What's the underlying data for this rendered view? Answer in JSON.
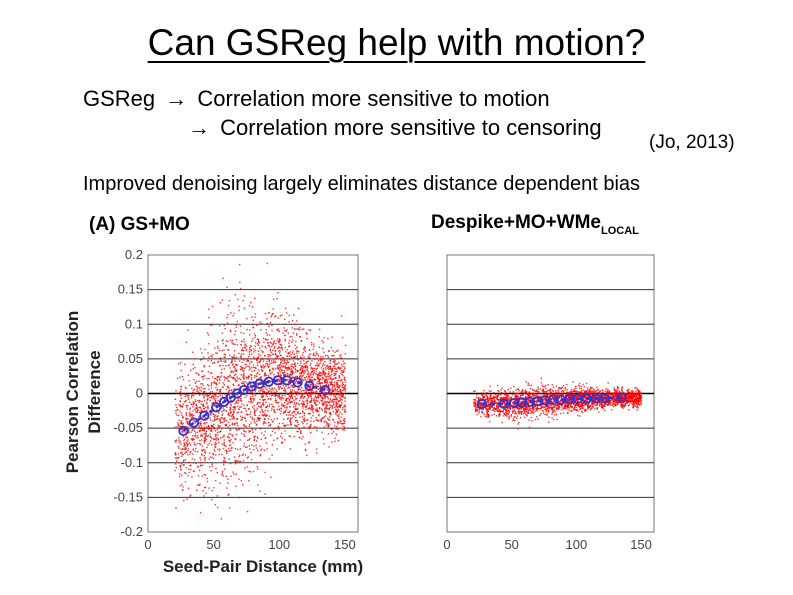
{
  "slide": {
    "title": "Can GSReg help with motion?",
    "line1_prefix": "GSReg",
    "line1_text": "Correlation more sensitive to motion",
    "line2_text": "Correlation more sensitive to censoring",
    "citation": "(Jo, 2013)",
    "improved": "Improved denoising largely eliminates distance dependent bias",
    "arrow_glyph": "→"
  },
  "chart_data": [
    {
      "type": "scatter",
      "title": "(A) GS+MO",
      "xlabel": "Seed-Pair Distance (mm)",
      "ylabel_line1": "Pearson Correlation",
      "ylabel_line2": "Difference",
      "xlim": [
        0,
        160
      ],
      "ylim": [
        -0.2,
        0.2
      ],
      "xticks": [
        "0",
        "50",
        "100",
        "150"
      ],
      "yticks": [
        "0.2",
        "0.15",
        "0.1",
        "0.05",
        "0",
        "-0.05",
        "-0.1",
        "-0.15",
        "-0.2"
      ],
      "grid": true,
      "scatter_color": "#ff0000",
      "trend_color": "#3333cc",
      "trend": [
        {
          "x": 27,
          "y": -0.054
        },
        {
          "x": 35,
          "y": -0.042
        },
        {
          "x": 43,
          "y": -0.032
        },
        {
          "x": 52,
          "y": -0.02
        },
        {
          "x": 58,
          "y": -0.012
        },
        {
          "x": 63,
          "y": -0.006
        },
        {
          "x": 68,
          "y": 0.0
        },
        {
          "x": 73,
          "y": 0.005
        },
        {
          "x": 79,
          "y": 0.01
        },
        {
          "x": 85,
          "y": 0.014
        },
        {
          "x": 92,
          "y": 0.017
        },
        {
          "x": 99,
          "y": 0.019
        },
        {
          "x": 106,
          "y": 0.019
        },
        {
          "x": 114,
          "y": 0.016
        },
        {
          "x": 123,
          "y": 0.011
        },
        {
          "x": 135,
          "y": 0.005
        }
      ]
    },
    {
      "type": "scatter",
      "title": "Despike+MO+WMe",
      "title_subscript": "LOCAL",
      "xlim": [
        0,
        160
      ],
      "ylim": [
        -0.2,
        0.2
      ],
      "xticks": [
        "0",
        "50",
        "100",
        "150"
      ],
      "grid": true,
      "scatter_color": "#ff0000",
      "trend_color": "#3333cc",
      "trend": [
        {
          "x": 27,
          "y": -0.015
        },
        {
          "x": 44,
          "y": -0.015
        },
        {
          "x": 52,
          "y": -0.014
        },
        {
          "x": 58,
          "y": -0.013
        },
        {
          "x": 64,
          "y": -0.012
        },
        {
          "x": 70,
          "y": -0.011
        },
        {
          "x": 76,
          "y": -0.01
        },
        {
          "x": 82,
          "y": -0.009
        },
        {
          "x": 88,
          "y": -0.009
        },
        {
          "x": 95,
          "y": -0.008
        },
        {
          "x": 101,
          "y": -0.008
        },
        {
          "x": 108,
          "y": -0.007
        },
        {
          "x": 115,
          "y": -0.007
        },
        {
          "x": 122,
          "y": -0.007
        },
        {
          "x": 135,
          "y": -0.006
        }
      ]
    }
  ]
}
